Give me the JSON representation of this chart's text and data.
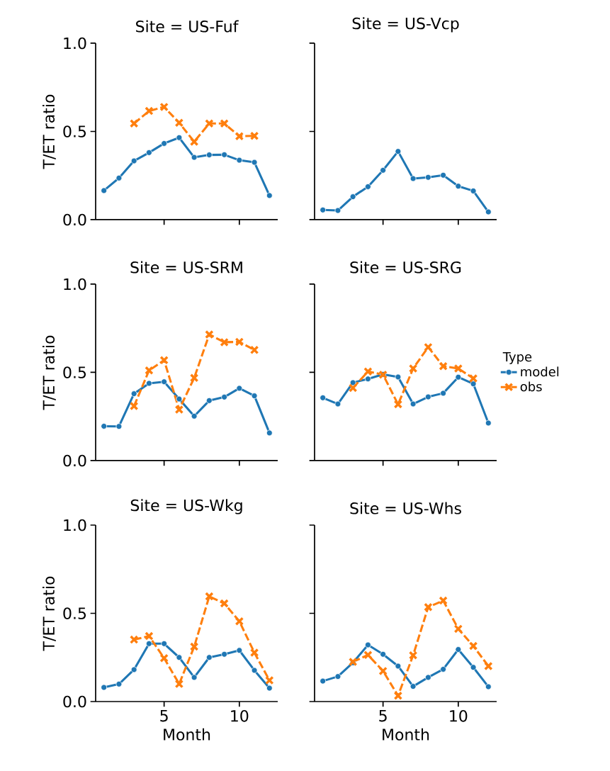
{
  "chart_data": [
    {
      "type": "line",
      "title": "Site = US-Fuf",
      "ylabel": "T/ET ratio",
      "x": [
        1,
        2,
        3,
        4,
        5,
        6,
        7,
        8,
        9,
        10,
        11,
        12
      ],
      "xlim": [
        0.45,
        12.55
      ],
      "ylim": [
        0,
        1
      ],
      "xticks": [
        5,
        10
      ],
      "yticks": [
        {
          "value": 0,
          "label": "0.0"
        },
        {
          "value": 0.5,
          "label": "0.5"
        },
        {
          "value": 1,
          "label": "1.0"
        }
      ],
      "tick_labels": "y",
      "series": [
        {
          "color": "#1f77b4",
          "marker": "circle",
          "line_style": "solid",
          "values": [
            0.165,
            0.236,
            0.333,
            0.38,
            0.432,
            0.465,
            0.353,
            0.367,
            0.368,
            0.337,
            0.325,
            0.137
          ]
        },
        {
          "color": "#ff7f0e",
          "marker": "cross",
          "line_style": "dashed",
          "x": [
            3,
            4,
            5,
            6,
            7,
            8,
            9,
            10,
            11
          ],
          "values": [
            0.545,
            0.616,
            0.639,
            0.549,
            0.442,
            0.545,
            0.545,
            0.473,
            0.475
          ]
        }
      ]
    },
    {
      "type": "line",
      "title": "Site = US-Vcp",
      "x": [
        1,
        2,
        3,
        4,
        5,
        6,
        7,
        8,
        9,
        10,
        11,
        12
      ],
      "xlim": [
        0.45,
        12.55
      ],
      "ylim": [
        0,
        1
      ],
      "xticks": [
        5,
        10
      ],
      "yticks": [
        {
          "value": 0,
          "label": null
        },
        {
          "value": 0.5,
          "label": null
        },
        {
          "value": 1,
          "label": null
        }
      ],
      "tick_labels": false,
      "series": [
        {
          "color": "#1f77b4",
          "marker": "circle",
          "line_style": "solid",
          "values": [
            0.055,
            0.052,
            0.13,
            0.187,
            0.28,
            0.387,
            0.233,
            0.24,
            0.252,
            0.19,
            0.163,
            0.044
          ]
        }
      ]
    },
    {
      "type": "line",
      "title": "Site = US-SRM",
      "ylabel": "T/ET ratio",
      "x": [
        1,
        2,
        3,
        4,
        5,
        6,
        7,
        8,
        9,
        10,
        11,
        12
      ],
      "xlim": [
        0.45,
        12.55
      ],
      "ylim": [
        0,
        1
      ],
      "xticks": [
        5,
        10
      ],
      "yticks": [
        {
          "value": 0,
          "label": "0.0"
        },
        {
          "value": 0.5,
          "label": "0.5"
        },
        {
          "value": 1,
          "label": "1.0"
        }
      ],
      "tick_labels": "y",
      "series": [
        {
          "color": "#1f77b4",
          "marker": "circle",
          "line_style": "solid",
          "values": [
            0.195,
            0.194,
            0.379,
            0.438,
            0.447,
            0.349,
            0.252,
            0.34,
            0.36,
            0.41,
            0.367,
            0.157
          ]
        },
        {
          "color": "#ff7f0e",
          "marker": "cross",
          "line_style": "dashed",
          "x": [
            3,
            4,
            5,
            6,
            7,
            8,
            9,
            10,
            11
          ],
          "values": [
            0.309,
            0.511,
            0.569,
            0.289,
            0.469,
            0.715,
            0.671,
            0.673,
            0.627
          ]
        }
      ]
    },
    {
      "type": "line",
      "title": "Site = US-SRG",
      "x": [
        1,
        2,
        3,
        4,
        5,
        6,
        7,
        8,
        9,
        10,
        11,
        12
      ],
      "xlim": [
        0.45,
        12.55
      ],
      "ylim": [
        0,
        1
      ],
      "xticks": [
        5,
        10
      ],
      "yticks": [
        {
          "value": 0,
          "label": null
        },
        {
          "value": 0.5,
          "label": null
        },
        {
          "value": 1,
          "label": null
        }
      ],
      "tick_labels": false,
      "legend": "right",
      "legend_title": "Type",
      "series": [
        {
          "name": "model",
          "color": "#1f77b4",
          "marker": "circle",
          "line_style": "solid",
          "values": [
            0.356,
            0.321,
            0.442,
            0.463,
            0.489,
            0.474,
            0.321,
            0.361,
            0.382,
            0.473,
            0.435,
            0.213
          ]
        },
        {
          "name": "obs",
          "color": "#ff7f0e",
          "marker": "cross",
          "line_style": "dashed",
          "x": [
            3,
            4,
            5,
            6,
            7,
            8,
            9,
            10,
            11
          ],
          "values": [
            0.412,
            0.505,
            0.487,
            0.319,
            0.522,
            0.643,
            0.535,
            0.522,
            0.466
          ]
        }
      ]
    },
    {
      "type": "line",
      "title": "Site = US-Wkg",
      "xlabel": "Month",
      "ylabel": "T/ET ratio",
      "x": [
        1,
        2,
        3,
        4,
        5,
        6,
        7,
        8,
        9,
        10,
        11,
        12
      ],
      "xlim": [
        0.45,
        12.55
      ],
      "ylim": [
        0,
        1
      ],
      "xticks": [
        5,
        10
      ],
      "yticks": [
        {
          "value": 0,
          "label": "0.0"
        },
        {
          "value": 0.5,
          "label": "0.5"
        },
        {
          "value": 1,
          "label": "1.0"
        }
      ],
      "series": [
        {
          "color": "#1f77b4",
          "marker": "circle",
          "line_style": "solid",
          "values": [
            0.08,
            0.099,
            0.181,
            0.328,
            0.328,
            0.25,
            0.137,
            0.25,
            0.268,
            0.29,
            0.177,
            0.076
          ]
        },
        {
          "color": "#ff7f0e",
          "marker": "cross",
          "line_style": "dashed",
          "x": [
            3,
            4,
            5,
            6,
            7,
            8,
            9,
            10,
            11,
            12
          ],
          "values": [
            0.351,
            0.371,
            0.246,
            0.1,
            0.311,
            0.596,
            0.556,
            0.455,
            0.277,
            0.12
          ]
        }
      ]
    },
    {
      "type": "line",
      "title": "Site = US-Whs",
      "xlabel": "Month",
      "x": [
        1,
        2,
        3,
        4,
        5,
        6,
        7,
        8,
        9,
        10,
        11,
        12
      ],
      "xlim": [
        0.45,
        12.55
      ],
      "ylim": [
        0,
        1
      ],
      "xticks": [
        5,
        10
      ],
      "yticks": [
        {
          "value": 0,
          "label": null
        },
        {
          "value": 0.5,
          "label": null
        },
        {
          "value": 1,
          "label": null
        }
      ],
      "tick_labels": "x",
      "series": [
        {
          "color": "#1f77b4",
          "marker": "circle",
          "line_style": "solid",
          "values": [
            0.116,
            0.142,
            0.22,
            0.321,
            0.268,
            0.201,
            0.086,
            0.137,
            0.183,
            0.295,
            0.194,
            0.084
          ]
        },
        {
          "color": "#ff7f0e",
          "marker": "cross",
          "line_style": "dashed",
          "x": [
            3,
            4,
            5,
            6,
            7,
            8,
            9,
            10,
            11,
            12
          ],
          "values": [
            0.225,
            0.264,
            0.173,
            0.033,
            0.262,
            0.535,
            0.572,
            0.412,
            0.315,
            0.201
          ]
        }
      ]
    }
  ]
}
